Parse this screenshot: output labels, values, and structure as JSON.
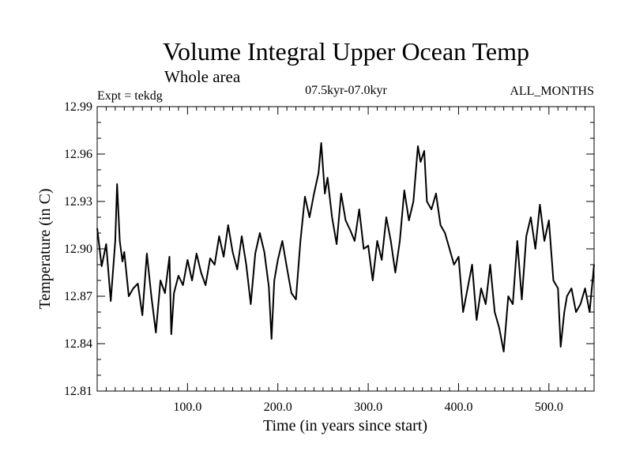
{
  "chart_data": {
    "type": "line",
    "title": "Volume Integral Upper Ocean Temp",
    "subtitle": "Whole area",
    "expt_label": "Expt = tekdg",
    "period_label": "07.5kyr-07.0kyr",
    "months_label": "ALL_MONTHS",
    "xlabel": "Time (in years since start)",
    "ylabel": "Temperature (in C)",
    "xlim": [
      0,
      550
    ],
    "ylim": [
      12.81,
      12.99
    ],
    "x_ticks": [
      100,
      200,
      300,
      400,
      500
    ],
    "x_tick_labels": [
      "100.0",
      "200.0",
      "300.0",
      "400.0",
      "500.0"
    ],
    "y_ticks": [
      12.81,
      12.84,
      12.87,
      12.9,
      12.93,
      12.96,
      12.99
    ],
    "y_tick_labels": [
      "12.81",
      "12.84",
      "12.87",
      "12.90",
      "12.93",
      "12.96",
      "12.99"
    ],
    "grid": false,
    "series": [
      {
        "name": "Volume integral upper ocean temperature",
        "x": [
          0,
          5,
          10,
          15,
          20,
          22,
          25,
          28,
          30,
          35,
          40,
          45,
          50,
          55,
          60,
          65,
          70,
          75,
          80,
          82,
          85,
          90,
          95,
          100,
          105,
          110,
          115,
          120,
          125,
          130,
          135,
          140,
          145,
          150,
          155,
          160,
          165,
          170,
          175,
          180,
          185,
          190,
          193,
          196,
          200,
          205,
          210,
          215,
          220,
          225,
          230,
          235,
          240,
          245,
          248,
          252,
          255,
          260,
          265,
          270,
          275,
          280,
          285,
          290,
          295,
          300,
          305,
          310,
          315,
          320,
          325,
          330,
          335,
          340,
          345,
          350,
          355,
          358,
          362,
          365,
          370,
          375,
          380,
          385,
          390,
          395,
          400,
          405,
          410,
          415,
          420,
          425,
          430,
          435,
          440,
          445,
          450,
          455,
          460,
          465,
          470,
          475,
          480,
          485,
          490,
          495,
          500,
          505,
          510,
          513,
          517,
          520,
          525,
          530,
          535,
          540,
          545,
          550
        ],
        "y": [
          12.913,
          12.889,
          12.903,
          12.867,
          12.905,
          12.941,
          12.905,
          12.892,
          12.898,
          12.87,
          12.875,
          12.878,
          12.858,
          12.897,
          12.87,
          12.847,
          12.88,
          12.872,
          12.895,
          12.846,
          12.872,
          12.883,
          12.877,
          12.893,
          12.88,
          12.897,
          12.885,
          12.877,
          12.894,
          12.89,
          12.908,
          12.895,
          12.915,
          12.898,
          12.887,
          12.908,
          12.89,
          12.865,
          12.897,
          12.91,
          12.898,
          12.876,
          12.843,
          12.88,
          12.893,
          12.905,
          12.888,
          12.872,
          12.868,
          12.905,
          12.933,
          12.92,
          12.935,
          12.948,
          12.967,
          12.935,
          12.945,
          12.92,
          12.903,
          12.935,
          12.918,
          12.912,
          12.905,
          12.925,
          12.9,
          12.902,
          12.88,
          12.905,
          12.893,
          12.92,
          12.905,
          12.885,
          12.905,
          12.937,
          12.918,
          12.93,
          12.965,
          12.955,
          12.962,
          12.93,
          12.925,
          12.935,
          12.915,
          12.91,
          12.9,
          12.89,
          12.895,
          12.86,
          12.875,
          12.89,
          12.855,
          12.875,
          12.865,
          12.89,
          12.86,
          12.85,
          12.835,
          12.87,
          12.865,
          12.905,
          12.868,
          12.908,
          12.92,
          12.9,
          12.928,
          12.905,
          12.918,
          12.88,
          12.875,
          12.838,
          12.86,
          12.87,
          12.875,
          12.86,
          12.865,
          12.875,
          12.86,
          12.89
        ]
      }
    ]
  }
}
